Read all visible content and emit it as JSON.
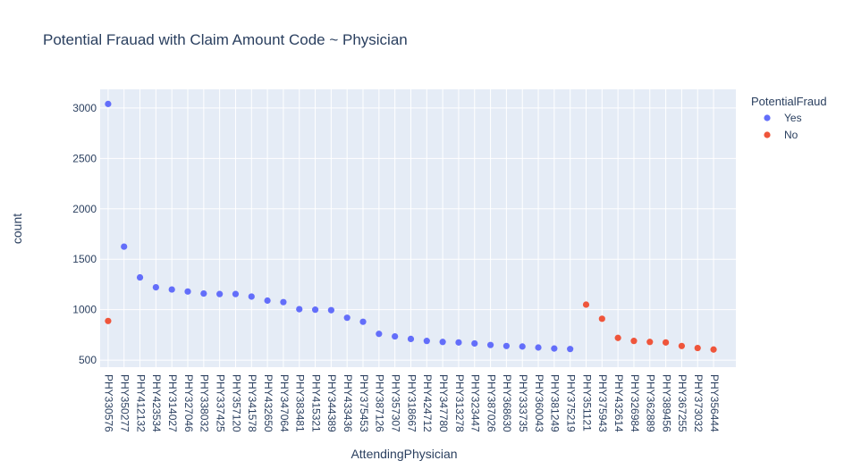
{
  "chart_data": {
    "type": "scatter",
    "title": "Potential Frauad with Claim Amount Code ~ Physician",
    "xlabel": "AttendingPhysician",
    "ylabel": "count",
    "legend_title": "PotentialFraud",
    "legend_position": "top-right",
    "grid": true,
    "plot_bg": "#e5ecf6",
    "ylim": [
      430,
      3185
    ],
    "yticks": [
      500,
      1000,
      1500,
      2000,
      2500,
      3000
    ],
    "categories": [
      "PHY330576",
      "PHY350277",
      "PHY412132",
      "PHY423534",
      "PHY314027",
      "PHY327046",
      "PHY338032",
      "PHY337425",
      "PHY357120",
      "PHY341578",
      "PHY432650",
      "PHY347064",
      "PHY383481",
      "PHY415321",
      "PHY344389",
      "PHY433436",
      "PHY375453",
      "PHY387126",
      "PHY357307",
      "PHY318667",
      "PHY424712",
      "PHY347780",
      "PHY313278",
      "PHY323447",
      "PHY387026",
      "PHY368630",
      "PHY333735",
      "PHY360043",
      "PHY381249",
      "PHY375219",
      "PHY351121",
      "PHY375943",
      "PHY432614",
      "PHY326984",
      "PHY362889",
      "PHY389456",
      "PHY367255",
      "PHY373032",
      "PHY356444"
    ],
    "series": [
      {
        "name": "Yes",
        "color": "#636efa",
        "x": [
          "PHY330576",
          "PHY350277",
          "PHY412132",
          "PHY423534",
          "PHY314027",
          "PHY327046",
          "PHY338032",
          "PHY337425",
          "PHY357120",
          "PHY341578",
          "PHY432650",
          "PHY347064",
          "PHY383481",
          "PHY415321",
          "PHY344389",
          "PHY433436",
          "PHY375453",
          "PHY387126",
          "PHY357307",
          "PHY318667",
          "PHY424712",
          "PHY347780",
          "PHY313278",
          "PHY323447",
          "PHY387026",
          "PHY368630",
          "PHY333735",
          "PHY360043",
          "PHY381249",
          "PHY375219"
        ],
        "y": [
          3040,
          1625,
          1320,
          1222,
          1200,
          1180,
          1160,
          1155,
          1155,
          1130,
          1090,
          1075,
          1005,
          1000,
          995,
          920,
          880,
          760,
          735,
          710,
          690,
          680,
          675,
          665,
          650,
          640,
          635,
          625,
          615,
          610
        ]
      },
      {
        "name": "No",
        "color": "#ef553b",
        "x": [
          "PHY330576",
          "PHY351121",
          "PHY375943",
          "PHY432614",
          "PHY326984",
          "PHY362889",
          "PHY389456",
          "PHY367255",
          "PHY373032",
          "PHY356444"
        ],
        "y": [
          888,
          1050,
          910,
          720,
          690,
          680,
          675,
          640,
          620,
          605
        ]
      }
    ]
  }
}
